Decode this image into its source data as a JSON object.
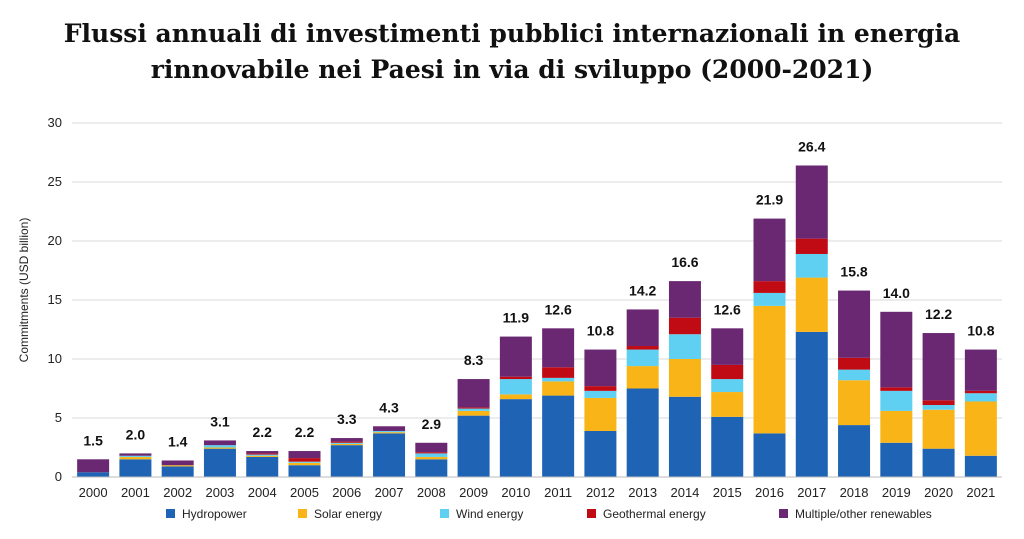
{
  "title_line1": "Flussi annuali di investimenti pubblici internazionali in energia",
  "title_line2": "rinnovabile nei Paesi in via di sviluppo (2000-2021)",
  "chart_data": {
    "type": "bar",
    "stacked": true,
    "ylabel": "Commitments (USD billion)",
    "ylim": [
      0,
      30
    ],
    "yticks": [
      0,
      5,
      10,
      15,
      20,
      25,
      30
    ],
    "grid": true,
    "legend_position": "bottom",
    "categories": [
      "2000",
      "2001",
      "2002",
      "2003",
      "2004",
      "2005",
      "2006",
      "2007",
      "2008",
      "2009",
      "2010",
      "2011",
      "2012",
      "2013",
      "2014",
      "2015",
      "2016",
      "2017",
      "2018",
      "2019",
      "2020",
      "2021"
    ],
    "totals": [
      "1.5",
      "2.0",
      "1.4",
      "3.1",
      "2.2",
      "2.2",
      "3.3",
      "4.3",
      "2.9",
      "8.3",
      "11.9",
      "12.6",
      "10.8",
      "14.2",
      "16.6",
      "12.6",
      "21.9",
      "26.4",
      "15.8",
      "14.0",
      "12.2",
      "10.8"
    ],
    "series": [
      {
        "name": "Hydropower",
        "color": "#1f64b4",
        "values": [
          0.4,
          1.5,
          0.9,
          2.4,
          1.7,
          1.0,
          2.7,
          3.7,
          1.5,
          5.2,
          6.6,
          6.9,
          3.9,
          7.5,
          6.8,
          5.1,
          3.7,
          12.3,
          4.4,
          2.9,
          2.4,
          1.8
        ]
      },
      {
        "name": "Solar energy",
        "color": "#f9b418",
        "values": [
          0.0,
          0.2,
          0.1,
          0.1,
          0.1,
          0.2,
          0.1,
          0.1,
          0.2,
          0.4,
          0.4,
          1.2,
          2.8,
          1.9,
          3.2,
          2.1,
          10.8,
          4.6,
          3.8,
          2.7,
          3.3,
          4.6
        ]
      },
      {
        "name": "Wind energy",
        "color": "#5fd0f2",
        "values": [
          0.0,
          0.1,
          0.0,
          0.2,
          0.1,
          0.1,
          0.1,
          0.1,
          0.3,
          0.2,
          1.3,
          0.3,
          0.6,
          1.4,
          2.1,
          1.1,
          1.1,
          2.0,
          0.9,
          1.7,
          0.4,
          0.7
        ]
      },
      {
        "name": "Geothermal energy",
        "color": "#c00b14",
        "values": [
          0.0,
          0.0,
          0.0,
          0.0,
          0.1,
          0.3,
          0.1,
          0.0,
          0.1,
          0.1,
          0.2,
          0.9,
          0.4,
          0.3,
          1.4,
          1.2,
          1.0,
          1.3,
          1.0,
          0.3,
          0.4,
          0.2
        ]
      },
      {
        "name": "Multiple/other renewables",
        "color": "#6b2872",
        "values": [
          1.1,
          0.2,
          0.4,
          0.4,
          0.2,
          0.6,
          0.3,
          0.4,
          0.8,
          2.4,
          3.4,
          3.3,
          3.1,
          3.1,
          3.1,
          3.1,
          5.3,
          6.2,
          5.7,
          6.4,
          5.7,
          3.5
        ]
      }
    ]
  }
}
